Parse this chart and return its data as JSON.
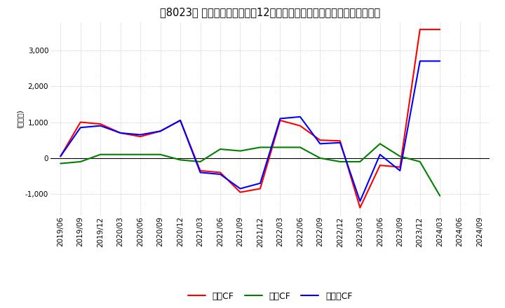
{
  "title": "［8023］ キャッシュフローの12か月移動合計の対前年同期増減額の推移",
  "ylabel": "(百万円)",
  "ylim": [
    -1600,
    3800
  ],
  "yticks": [
    -1000,
    0,
    1000,
    2000,
    3000
  ],
  "dates": [
    "2019/06",
    "2019/09",
    "2019/12",
    "2020/03",
    "2020/06",
    "2020/09",
    "2020/12",
    "2021/03",
    "2021/06",
    "2021/09",
    "2021/12",
    "2022/03",
    "2022/06",
    "2022/09",
    "2022/12",
    "2023/03",
    "2023/06",
    "2023/09",
    "2023/12",
    "2024/03",
    "2024/06",
    "2024/09"
  ],
  "operating_cf": [
    50,
    1000,
    950,
    700,
    600,
    750,
    1050,
    -350,
    -400,
    -950,
    -850,
    1050,
    900,
    500,
    480,
    -1380,
    -200,
    -250,
    3580,
    3580,
    null,
    null
  ],
  "investing_cf": [
    -150,
    -100,
    100,
    100,
    100,
    100,
    -50,
    -100,
    250,
    200,
    300,
    300,
    300,
    0,
    -100,
    -100,
    400,
    50,
    -100,
    -1050,
    null,
    null
  ],
  "free_cf": [
    50,
    850,
    900,
    700,
    650,
    750,
    1050,
    -400,
    -450,
    -850,
    -700,
    1100,
    1150,
    400,
    430,
    -1200,
    100,
    -350,
    2700,
    2700,
    null,
    null
  ],
  "operating_color": "#FF0000",
  "investing_color": "#008000",
  "free_color": "#0000FF",
  "background_color": "#FFFFFF",
  "grid_color": "#AAAAAA",
  "title_fontsize": 10.5,
  "axis_fontsize": 7.5,
  "legend_fontsize": 9
}
